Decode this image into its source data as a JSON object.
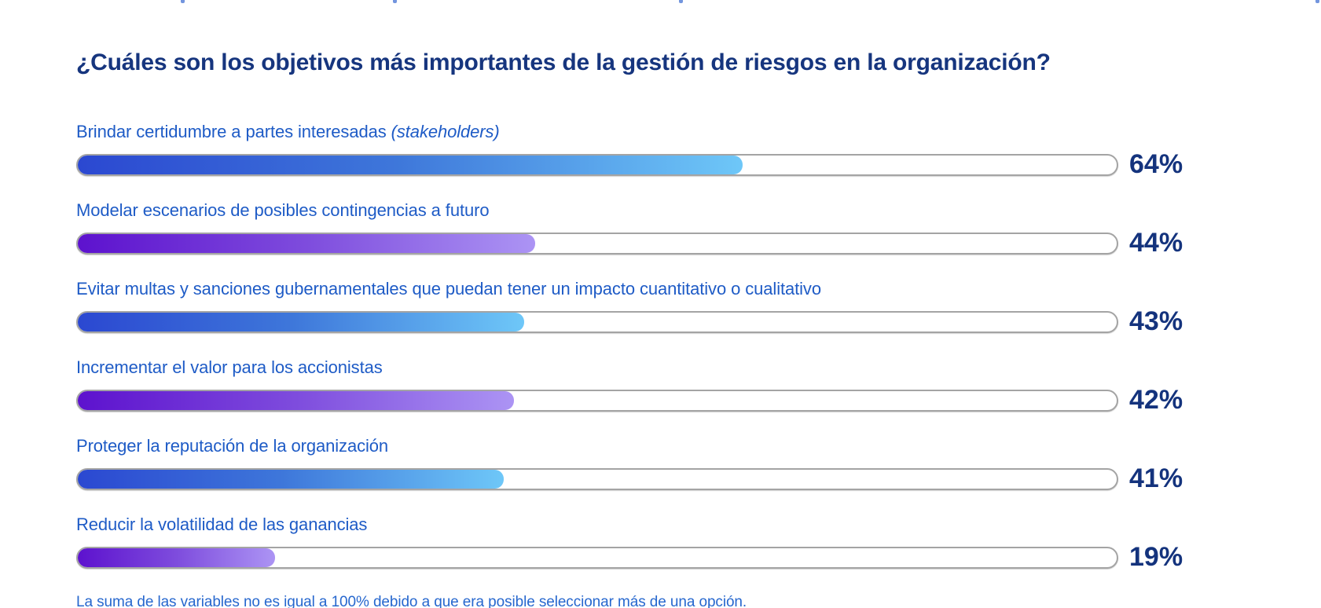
{
  "title": {
    "text": "¿Cuáles son los objetivos más importantes de la gestión de riesgos en la organización?"
  },
  "footnote": {
    "text": "La suma de las variables no es igual a 100% debido a que era posible seleccionar más de una opción."
  },
  "colors": {
    "title_navy": "#16357E",
    "label_blue": "#1E5BC6",
    "value_navy": "#14337D",
    "footnote_blue": "#2667CE",
    "track_border_gray": "#A4A4A4",
    "blue_gradient_start": "#2B48D1",
    "blue_gradient_end": "#6EC7F8",
    "purple_gradient_start": "#5D12CE",
    "purple_gradient_end": "#AC94F4"
  },
  "chart_data": {
    "type": "bar",
    "orientation": "horizontal",
    "title": "¿Cuáles son los objetivos más importantes de la gestión de riesgos en la organización?",
    "xlabel": "",
    "ylabel": "",
    "xlim": [
      0,
      100
    ],
    "unit": "%",
    "grid": false,
    "legend": "none",
    "categories": [
      "Brindar certidumbre a partes interesadas (stakeholders)",
      "Modelar escenarios de posibles contingencias a futuro",
      "Evitar multas y sanciones gubernamentales que puedan tener un impacto cuantitativo o cualitativo",
      "Incrementar el valor para los accionistas",
      "Proteger la reputación de la organización",
      "Reducir la volatilidad de las ganancias"
    ],
    "values": [
      64,
      44,
      43,
      42,
      41,
      19
    ],
    "bars": [
      {
        "label": "Brindar certidumbre a partes interesadas",
        "label_italic": "(stakeholders)",
        "value": 64,
        "value_label": "64%",
        "palette": "blue"
      },
      {
        "label": "Modelar escenarios de posibles contingencias a futuro",
        "label_italic": "",
        "value": 44,
        "value_label": "44%",
        "palette": "purple"
      },
      {
        "label": "Evitar multas y sanciones gubernamentales que puedan tener un impacto cuantitativo o cualitativo",
        "label_italic": "",
        "value": 43,
        "value_label": "43%",
        "palette": "blue"
      },
      {
        "label": "Incrementar el valor para los accionistas",
        "label_italic": "",
        "value": 42,
        "value_label": "42%",
        "palette": "purple"
      },
      {
        "label": "Proteger la reputación de la organización",
        "label_italic": "",
        "value": 41,
        "value_label": "41%",
        "palette": "blue"
      },
      {
        "label": "Reducir la volatilidad de las ganancias",
        "label_italic": "",
        "value": 19,
        "value_label": "19%",
        "palette": "purple"
      }
    ],
    "footnote": "La suma de las variables no es igual a 100% debido a que era posible seleccionar más de una opción."
  }
}
